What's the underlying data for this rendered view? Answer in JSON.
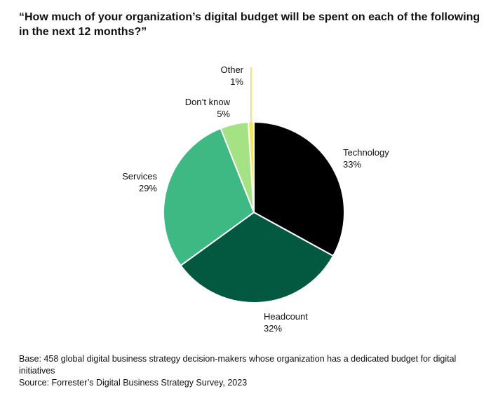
{
  "title": "“How much of your organization’s digital budget will be spent on each of the following in the next 12 months?”",
  "chart_data": {
    "type": "pie",
    "title": "“How much of your organization’s digital budget will be spent on each of the following in the next 12 months?”",
    "slices": [
      {
        "label": "Technology",
        "value": 33,
        "value_label": "33%",
        "color": "#000000"
      },
      {
        "label": "Headcount",
        "value": 32,
        "value_label": "32%",
        "color": "#035840"
      },
      {
        "label": "Services",
        "value": 29,
        "value_label": "29%",
        "color": "#3fb984"
      },
      {
        "label": "Don’t know",
        "value": 5,
        "value_label": "5%",
        "color": "#a4e283"
      },
      {
        "label": "Other",
        "value": 1,
        "value_label": "1%",
        "color": "#f3e65c"
      }
    ],
    "start_angle": "12 o'clock",
    "direction": "clockwise"
  },
  "notes": {
    "base": "Base: 458 global digital business strategy decision-makers whose organization has a dedicated budget for digital initiatives",
    "source": "Source: Forrester’s Digital Business Strategy Survey, 2023"
  }
}
